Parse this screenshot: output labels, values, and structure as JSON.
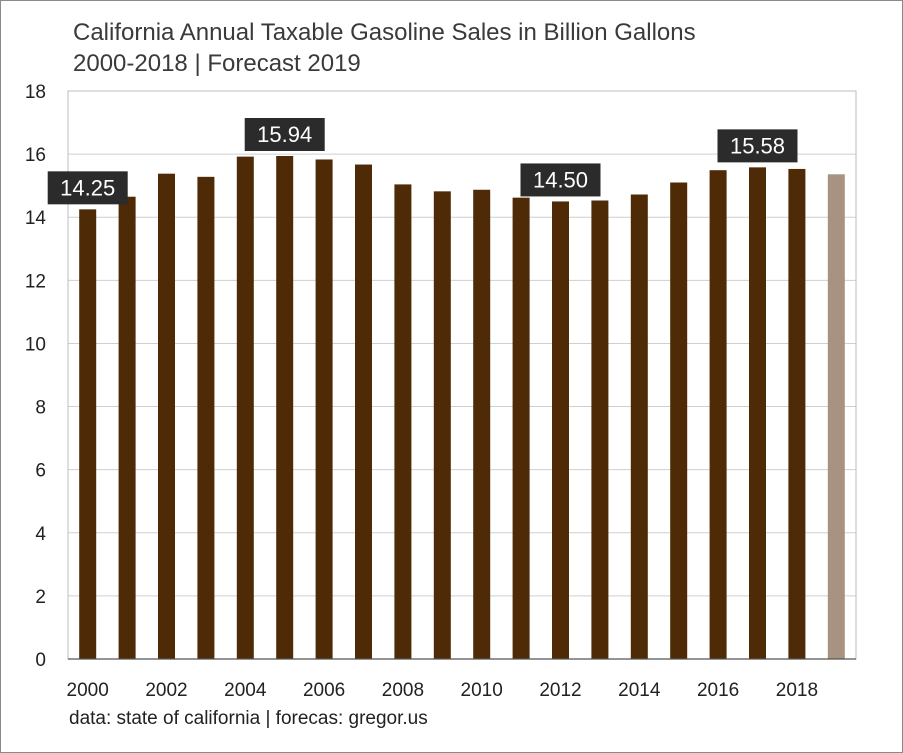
{
  "chart_data": {
    "type": "bar",
    "title": "California Annual Taxable Gasoline Sales in Billion Gallons",
    "subtitle": "2000-2018 | Forecast 2019",
    "source": "data: state of california | forecas: gregor.us",
    "x": [
      2000,
      2001,
      2002,
      2003,
      2004,
      2005,
      2006,
      2007,
      2008,
      2009,
      2010,
      2011,
      2012,
      2013,
      2014,
      2015,
      2016,
      2017,
      2018,
      2019
    ],
    "values": [
      14.25,
      14.65,
      15.38,
      15.28,
      15.92,
      15.94,
      15.83,
      15.67,
      15.04,
      14.82,
      14.87,
      14.62,
      14.5,
      14.53,
      14.72,
      15.1,
      15.49,
      15.58,
      15.53,
      15.36
    ],
    "forecast_flags": [
      false,
      false,
      false,
      false,
      false,
      false,
      false,
      false,
      false,
      false,
      false,
      false,
      false,
      false,
      false,
      false,
      false,
      false,
      false,
      true
    ],
    "x_tick_labels": [
      "2000",
      "2002",
      "2004",
      "2006",
      "2008",
      "2010",
      "2012",
      "2014",
      "2016",
      "2018"
    ],
    "y_ticks": [
      0,
      2,
      4,
      6,
      8,
      10,
      12,
      14,
      16,
      18
    ],
    "ylim": [
      0,
      18
    ],
    "grid": true,
    "legend": "none",
    "annotations": [
      {
        "year": 2000,
        "label": "14.25"
      },
      {
        "year": 2005,
        "label": "15.94"
      },
      {
        "year": 2012,
        "label": "14.50"
      },
      {
        "year": 2017,
        "label": "15.58"
      }
    ],
    "colors": {
      "actual": "#4f2a06",
      "forecast": "#a89280",
      "callout_bg": "#2b2b2b",
      "callout_text": "#ffffff",
      "grid": "#cfcfcf"
    }
  }
}
